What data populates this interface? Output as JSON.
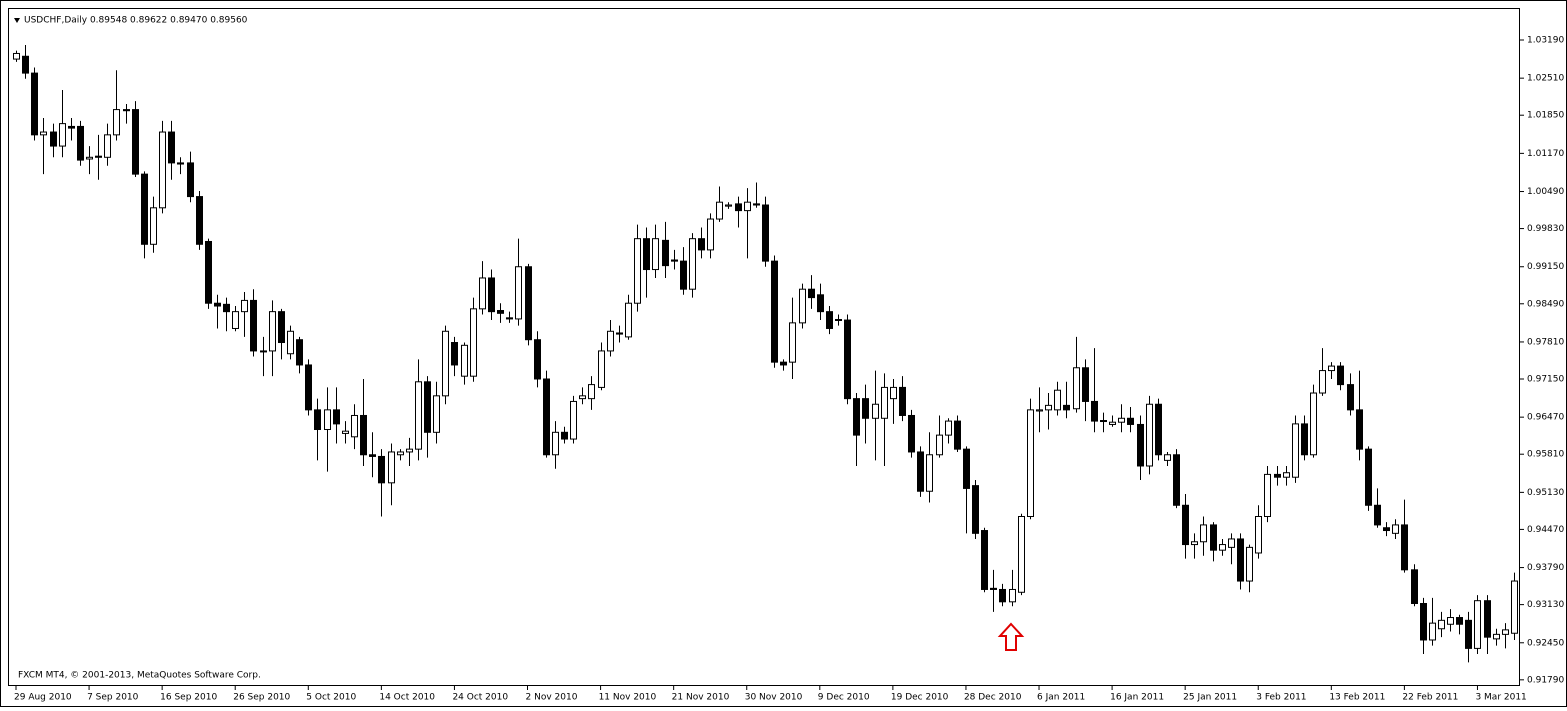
{
  "chart_data": {
    "type": "candlestick",
    "title": "USDCHF,Daily  0.89548 0.89622 0.89470 0.89560",
    "annotation": "FXCM MT4, © 2001-2013, MetaQuotes Software Corp.",
    "up_color": "#ffffff",
    "down_color": "#000000",
    "categories": [
      "29 Aug 2010",
      null,
      null,
      null,
      null,
      null,
      null,
      null,
      "7 Sep 2010",
      null,
      null,
      null,
      null,
      null,
      null,
      null,
      "16 Sep 2010",
      null,
      null,
      null,
      null,
      null,
      null,
      null,
      "26 Sep 2010",
      null,
      null,
      null,
      null,
      null,
      null,
      null,
      "5 Oct 2010",
      null,
      null,
      null,
      null,
      null,
      null,
      null,
      "14 Oct 2010",
      null,
      null,
      null,
      null,
      null,
      null,
      null,
      "24 Oct 2010",
      null,
      null,
      null,
      null,
      null,
      null,
      null,
      "2 Nov 2010",
      null,
      null,
      null,
      null,
      null,
      null,
      null,
      "11 Nov 2010",
      null,
      null,
      null,
      null,
      null,
      null,
      null,
      "21 Nov 2010",
      null,
      null,
      null,
      null,
      null,
      null,
      null,
      "30 Nov 2010",
      null,
      null,
      null,
      null,
      null,
      null,
      null,
      "9 Dec 2010",
      null,
      null,
      null,
      null,
      null,
      null,
      null,
      "19 Dec 2010",
      null,
      null,
      null,
      null,
      null,
      null,
      null,
      "28 Dec 2010",
      null,
      null,
      null,
      null,
      null,
      null,
      null,
      "6 Jan 2011",
      null,
      null,
      null,
      null,
      null,
      null,
      null,
      "16 Jan 2011",
      null,
      null,
      null,
      null,
      null,
      null,
      null,
      "25 Jan 2011",
      null,
      null,
      null,
      null,
      null,
      null,
      null,
      "3 Feb 2011",
      null,
      null,
      null,
      null,
      null,
      null,
      null,
      "13 Feb 2011",
      null,
      null,
      null,
      null,
      null,
      null,
      null,
      "22 Feb 2011",
      null,
      null,
      null,
      null,
      null,
      null,
      null,
      "3 Mar 2011",
      null,
      null,
      null,
      null
    ],
    "open": [
      1.0285,
      1.029,
      1.026,
      1.015,
      1.0155,
      1.013,
      1.0165,
      1.0165,
      1.0107,
      1.0112,
      1.011,
      1.015,
      1.0195,
      1.0195,
      1.008,
      0.9955,
      1.002,
      1.0155,
      1.01,
      1.01,
      1.004,
      0.996,
      0.985,
      0.9848,
      0.9805,
      0.9835,
      0.9855,
      0.9765,
      0.9765,
      0.9835,
      0.976,
      0.9785,
      0.974,
      0.966,
      0.9625,
      0.966,
      0.9618,
      0.9612,
      0.965,
      0.958,
      0.9577,
      0.953,
      0.958,
      0.9585,
      0.959,
      0.971,
      0.962,
      0.9685,
      0.978,
      0.972,
      0.972,
      0.984,
      0.9895,
      0.9837,
      0.9824,
      0.9822,
      0.9915,
      0.9785,
      0.9715,
      0.958,
      0.962,
      0.9608,
      0.968,
      0.968,
      0.97,
      0.9765,
      0.9797,
      0.979,
      0.985,
      0.9965,
      0.991,
      0.9962,
      0.9927,
      0.9925,
      0.9875,
      0.9965,
      0.9945,
      1.0,
      1.0023,
      1.0027,
      1.0015,
      1.0027,
      1.0025,
      0.9925,
      0.9745,
      0.9745,
      0.9815,
      0.9875,
      0.9865,
      0.9835,
      0.9821,
      0.982,
      0.968,
      0.968,
      0.9645,
      0.9645,
      0.968,
      0.97,
      0.965,
      0.9585,
      0.9515,
      0.958,
      0.9615,
      0.964,
      0.959,
      0.9525,
      0.9445,
      0.9342,
      0.934,
      0.9318,
      0.9335,
      0.947,
      0.9658,
      0.966,
      0.966,
      0.9668,
      0.9662,
      0.9735,
      0.9675,
      0.9641,
      0.9634,
      0.9638,
      0.9645,
      0.9634,
      0.956,
      0.967,
      0.957,
      0.958,
      0.949,
      0.942,
      0.9425,
      0.9455,
      0.941,
      0.9415,
      0.943,
      0.9355,
      0.9405,
      0.947,
      0.9545,
      0.954,
      0.954,
      0.9635,
      0.958,
      0.969,
      0.973,
      0.9738,
      0.9705,
      0.966,
      0.959,
      0.949,
      0.945,
      0.944,
      0.9455,
      0.9375,
      0.9315,
      0.925,
      0.927,
      0.9278,
      0.929,
      0.9285,
      0.9235,
      0.932,
      0.9252,
      0.926,
      0.9262
    ],
    "high": [
      1.03,
      1.031,
      1.027,
      1.018,
      1.017,
      1.023,
      1.018,
      1.0175,
      1.013,
      1.015,
      1.017,
      1.0265,
      1.0205,
      1.021,
      1.0085,
      1.004,
      1.0175,
      1.0175,
      1.011,
      1.012,
      1.005,
      0.9965,
      0.9865,
      0.986,
      0.9845,
      0.987,
      0.9875,
      0.979,
      0.9855,
      0.984,
      0.981,
      0.979,
      0.975,
      0.968,
      0.97,
      0.97,
      0.964,
      0.967,
      0.9715,
      0.962,
      0.959,
      0.96,
      0.959,
      0.961,
      0.975,
      0.972,
      0.971,
      0.981,
      0.979,
      0.978,
      0.986,
      0.9925,
      0.991,
      0.985,
      0.9835,
      0.9965,
      0.992,
      0.98,
      0.973,
      0.964,
      0.963,
      0.9685,
      0.97,
      0.972,
      0.978,
      0.982,
      0.981,
      0.9865,
      0.999,
      0.9985,
      0.999,
      0.9995,
      0.9945,
      0.995,
      0.9975,
      0.9985,
      1.001,
      1.0058,
      1.003,
      1.004,
      1.0055,
      1.0065,
      1.004,
      0.9935,
      0.975,
      0.986,
      0.9885,
      0.99,
      0.9885,
      0.9845,
      0.983,
      0.983,
      0.969,
      0.9705,
      0.973,
      0.9725,
      0.9715,
      0.972,
      0.966,
      0.9595,
      0.962,
      0.965,
      0.9645,
      0.965,
      0.9595,
      0.9535,
      0.945,
      0.9375,
      0.935,
      0.9375,
      0.9475,
      0.968,
      0.97,
      0.969,
      0.971,
      0.971,
      0.979,
      0.975,
      0.977,
      0.9655,
      0.965,
      0.967,
      0.9665,
      0.965,
      0.9685,
      0.968,
      0.9585,
      0.959,
      0.951,
      0.944,
      0.947,
      0.946,
      0.943,
      0.944,
      0.944,
      0.942,
      0.949,
      0.956,
      0.956,
      0.956,
      0.965,
      0.965,
      0.9705,
      0.977,
      0.9745,
      0.9745,
      0.9725,
      0.973,
      0.9595,
      0.952,
      0.946,
      0.9465,
      0.95,
      0.9385,
      0.9325,
      0.9325,
      0.93,
      0.9305,
      0.9295,
      0.93,
      0.933,
      0.933,
      0.927,
      0.928,
      0.937
    ],
    "low": [
      1.028,
      1.025,
      1.014,
      1.008,
      1.011,
      1.011,
      1.014,
      1.0095,
      1.008,
      1.007,
      1.0095,
      1.014,
      1.017,
      1.0075,
      0.993,
      0.994,
      1.001,
      1.007,
      1.008,
      1.003,
      0.9945,
      0.984,
      0.9805,
      0.98,
      0.98,
      0.979,
      0.9755,
      0.972,
      0.972,
      0.975,
      0.975,
      0.9725,
      0.965,
      0.957,
      0.955,
      0.96,
      0.96,
      0.959,
      0.956,
      0.954,
      0.947,
      0.949,
      0.957,
      0.956,
      0.957,
      0.9575,
      0.96,
      0.967,
      0.972,
      0.9705,
      0.971,
      0.983,
      0.982,
      0.9815,
      0.9815,
      0.981,
      0.9775,
      0.97,
      0.9575,
      0.9555,
      0.96,
      0.96,
      0.967,
      0.966,
      0.9695,
      0.9755,
      0.978,
      0.9785,
      0.9835,
      0.986,
      0.9895,
      0.9895,
      0.991,
      0.9865,
      0.986,
      0.993,
      0.993,
      0.9995,
      1.0018,
      0.9985,
      0.993,
      1.002,
      0.9915,
      0.9735,
      0.973,
      0.9715,
      0.9805,
      0.984,
      0.982,
      0.9795,
      0.981,
      0.967,
      0.956,
      0.96,
      0.957,
      0.956,
      0.9635,
      0.964,
      0.9575,
      0.9505,
      0.9495,
      0.9575,
      0.96,
      0.9585,
      0.944,
      0.943,
      0.9335,
      0.93,
      0.931,
      0.931,
      0.933,
      0.9465,
      0.962,
      0.9625,
      0.965,
      0.9645,
      0.9655,
      0.964,
      0.962,
      0.962,
      0.963,
      0.962,
      0.962,
      0.9535,
      0.9545,
      0.957,
      0.956,
      0.9485,
      0.9395,
      0.9395,
      0.94,
      0.939,
      0.94,
      0.9385,
      0.934,
      0.9335,
      0.9395,
      0.946,
      0.9525,
      0.9525,
      0.953,
      0.957,
      0.9575,
      0.9685,
      0.9715,
      0.9695,
      0.965,
      0.957,
      0.948,
      0.945,
      0.9435,
      0.943,
      0.937,
      0.931,
      0.9225,
      0.924,
      0.9255,
      0.9265,
      0.926,
      0.921,
      0.9225,
      0.9225,
      0.924,
      0.9235,
      0.925
    ],
    "close": [
      1.0295,
      1.026,
      1.015,
      1.0155,
      1.013,
      1.017,
      1.0162,
      1.0105,
      1.011,
      1.011,
      1.015,
      1.0195,
      1.0193,
      1.008,
      0.9955,
      1.002,
      1.0155,
      1.01,
      1.0098,
      1.004,
      0.9955,
      0.985,
      0.9845,
      0.9835,
      0.9835,
      0.9855,
      0.9765,
      0.9765,
      0.9835,
      0.978,
      0.98,
      0.974,
      0.966,
      0.9625,
      0.966,
      0.9635,
      0.9622,
      0.965,
      0.958,
      0.9577,
      0.953,
      0.9585,
      0.9585,
      0.959,
      0.971,
      0.962,
      0.9685,
      0.98,
      0.974,
      0.9775,
      0.984,
      0.9895,
      0.9835,
      0.9832,
      0.9822,
      0.9915,
      0.9785,
      0.9715,
      0.958,
      0.962,
      0.9608,
      0.9675,
      0.9685,
      0.9705,
      0.9765,
      0.98,
      0.9795,
      0.985,
      0.9965,
      0.991,
      0.9965,
      0.9917,
      0.9925,
      0.9875,
      0.9965,
      0.9945,
      1.0,
      1.003,
      1.0025,
      1.0015,
      1.003,
      1.0025,
      0.9925,
      0.9745,
      0.974,
      0.9815,
      0.9875,
      0.986,
      0.9835,
      0.9805,
      0.982,
      0.968,
      0.9615,
      0.9645,
      0.967,
      0.97,
      0.97,
      0.965,
      0.9585,
      0.9515,
      0.958,
      0.9615,
      0.964,
      0.959,
      0.952,
      0.944,
      0.934,
      0.934,
      0.9318,
      0.934,
      0.947,
      0.966,
      0.966,
      0.9668,
      0.9695,
      0.966,
      0.9735,
      0.9675,
      0.964,
      0.964,
      0.9638,
      0.9645,
      0.9634,
      0.956,
      0.967,
      0.958,
      0.958,
      0.949,
      0.942,
      0.9425,
      0.9455,
      0.941,
      0.942,
      0.943,
      0.9355,
      0.9415,
      0.947,
      0.9545,
      0.954,
      0.9548,
      0.9635,
      0.958,
      0.969,
      0.973,
      0.9738,
      0.9705,
      0.966,
      0.959,
      0.949,
      0.9455,
      0.9445,
      0.9455,
      0.9375,
      0.9315,
      0.925,
      0.928,
      0.9285,
      0.929,
      0.9278,
      0.9235,
      0.932,
      0.9255,
      0.926,
      0.9268,
      0.9355
    ],
    "ylim": [
      0.9168,
      1.0376
    ],
    "yticks": [
      {
        "value": 1.0319,
        "label": "1.03190"
      },
      {
        "value": 1.0251,
        "label": "1.02510"
      },
      {
        "value": 1.0185,
        "label": "1.01850"
      },
      {
        "value": 1.0117,
        "label": "1.01170"
      },
      {
        "value": 1.0049,
        "label": "1.00490"
      },
      {
        "value": 0.9983,
        "label": "0.99830"
      },
      {
        "value": 0.9915,
        "label": "0.99150"
      },
      {
        "value": 0.9849,
        "label": "0.98490"
      },
      {
        "value": 0.9781,
        "label": "0.97810"
      },
      {
        "value": 0.9715,
        "label": "0.97150"
      },
      {
        "value": 0.9647,
        "label": "0.96470"
      },
      {
        "value": 0.9581,
        "label": "0.95810"
      },
      {
        "value": 0.9513,
        "label": "0.95130"
      },
      {
        "value": 0.9447,
        "label": "0.94470"
      },
      {
        "value": 0.9379,
        "label": "0.93790"
      },
      {
        "value": 0.9313,
        "label": "0.93130"
      },
      {
        "value": 0.9245,
        "label": "0.92450"
      },
      {
        "value": 0.9179,
        "label": "0.91790"
      }
    ],
    "grid": false
  }
}
